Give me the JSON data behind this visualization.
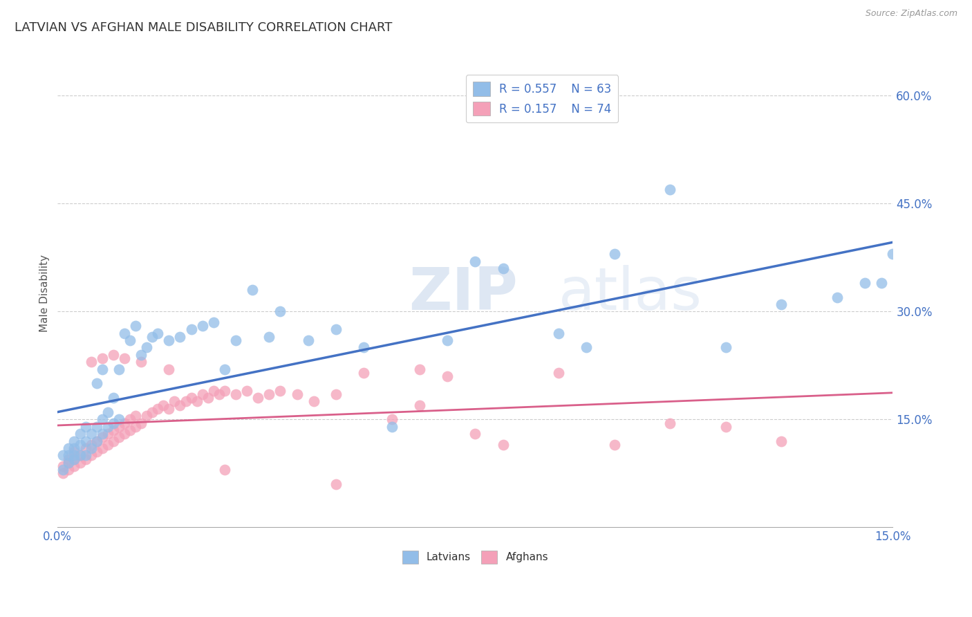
{
  "title": "LATVIAN VS AFGHAN MALE DISABILITY CORRELATION CHART",
  "source": "Source: ZipAtlas.com",
  "ylabel": "Male Disability",
  "xlim": [
    0.0,
    0.15
  ],
  "ylim": [
    0.0,
    0.65
  ],
  "xticks": [
    0.0,
    0.015,
    0.03,
    0.045,
    0.06,
    0.075,
    0.09,
    0.105,
    0.12,
    0.135,
    0.15
  ],
  "xticklabels": [
    "0.0%",
    "",
    "",
    "",
    "",
    "",
    "",
    "",
    "",
    "",
    "15.0%"
  ],
  "yticks": [
    0.0,
    0.15,
    0.3,
    0.45,
    0.6
  ],
  "yticklabels": [
    "",
    "15.0%",
    "30.0%",
    "45.0%",
    "60.0%"
  ],
  "latvian_R": 0.557,
  "latvian_N": 63,
  "afghan_R": 0.157,
  "afghan_N": 74,
  "latvian_color": "#92BDE8",
  "afghan_color": "#F4A0B8",
  "latvian_line_color": "#4472C4",
  "afghan_line_color": "#D95F8A",
  "background_color": "#FFFFFF",
  "grid_color": "#CCCCCC",
  "watermark_zip": "ZIP",
  "watermark_atlas": "atlas",
  "latvian_x": [
    0.001,
    0.001,
    0.002,
    0.002,
    0.002,
    0.003,
    0.003,
    0.003,
    0.003,
    0.004,
    0.004,
    0.004,
    0.005,
    0.005,
    0.005,
    0.006,
    0.006,
    0.007,
    0.007,
    0.007,
    0.008,
    0.008,
    0.008,
    0.009,
    0.009,
    0.01,
    0.01,
    0.011,
    0.011,
    0.012,
    0.013,
    0.014,
    0.015,
    0.016,
    0.017,
    0.018,
    0.02,
    0.022,
    0.024,
    0.026,
    0.028,
    0.03,
    0.032,
    0.035,
    0.038,
    0.04,
    0.045,
    0.05,
    0.055,
    0.06,
    0.07,
    0.075,
    0.08,
    0.09,
    0.095,
    0.1,
    0.11,
    0.12,
    0.13,
    0.14,
    0.145,
    0.148,
    0.15
  ],
  "latvian_y": [
    0.08,
    0.1,
    0.09,
    0.1,
    0.11,
    0.095,
    0.1,
    0.11,
    0.12,
    0.1,
    0.115,
    0.13,
    0.1,
    0.12,
    0.14,
    0.11,
    0.13,
    0.12,
    0.14,
    0.2,
    0.13,
    0.15,
    0.22,
    0.14,
    0.16,
    0.145,
    0.18,
    0.15,
    0.22,
    0.27,
    0.26,
    0.28,
    0.24,
    0.25,
    0.265,
    0.27,
    0.26,
    0.265,
    0.275,
    0.28,
    0.285,
    0.22,
    0.26,
    0.33,
    0.265,
    0.3,
    0.26,
    0.275,
    0.25,
    0.14,
    0.26,
    0.37,
    0.36,
    0.27,
    0.25,
    0.38,
    0.47,
    0.25,
    0.31,
    0.32,
    0.34,
    0.34,
    0.38
  ],
  "afghan_x": [
    0.001,
    0.001,
    0.002,
    0.002,
    0.002,
    0.003,
    0.003,
    0.003,
    0.004,
    0.004,
    0.005,
    0.005,
    0.006,
    0.006,
    0.007,
    0.007,
    0.008,
    0.008,
    0.009,
    0.009,
    0.01,
    0.01,
    0.011,
    0.011,
    0.012,
    0.012,
    0.013,
    0.013,
    0.014,
    0.014,
    0.015,
    0.016,
    0.017,
    0.018,
    0.019,
    0.02,
    0.021,
    0.022,
    0.023,
    0.024,
    0.025,
    0.026,
    0.027,
    0.028,
    0.029,
    0.03,
    0.032,
    0.034,
    0.036,
    0.038,
    0.04,
    0.043,
    0.046,
    0.05,
    0.055,
    0.06,
    0.065,
    0.07,
    0.075,
    0.08,
    0.09,
    0.1,
    0.11,
    0.12,
    0.05,
    0.065,
    0.03,
    0.02,
    0.015,
    0.012,
    0.01,
    0.008,
    0.006,
    0.13
  ],
  "afghan_y": [
    0.075,
    0.085,
    0.08,
    0.09,
    0.095,
    0.085,
    0.095,
    0.105,
    0.09,
    0.1,
    0.095,
    0.11,
    0.1,
    0.115,
    0.105,
    0.12,
    0.11,
    0.125,
    0.115,
    0.13,
    0.12,
    0.135,
    0.125,
    0.14,
    0.13,
    0.145,
    0.135,
    0.15,
    0.14,
    0.155,
    0.145,
    0.155,
    0.16,
    0.165,
    0.17,
    0.165,
    0.175,
    0.17,
    0.175,
    0.18,
    0.175,
    0.185,
    0.18,
    0.19,
    0.185,
    0.19,
    0.185,
    0.19,
    0.18,
    0.185,
    0.19,
    0.185,
    0.175,
    0.185,
    0.215,
    0.15,
    0.17,
    0.21,
    0.13,
    0.115,
    0.215,
    0.115,
    0.145,
    0.14,
    0.06,
    0.22,
    0.08,
    0.22,
    0.23,
    0.235,
    0.24,
    0.235,
    0.23,
    0.12
  ]
}
